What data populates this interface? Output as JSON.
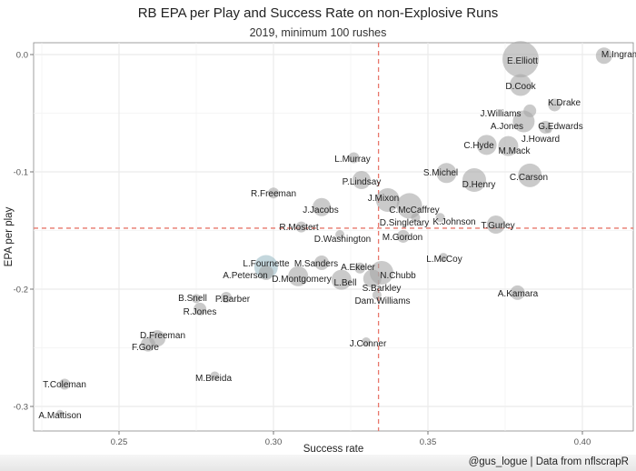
{
  "chart_data": {
    "type": "scatter",
    "title": "RB EPA per Play and Success Rate on non-Explosive Runs",
    "subtitle": "2019, minimum 100 rushes",
    "xlabel": "Success rate",
    "ylabel": "EPA per play",
    "caption": "@gus_logue | Data from nflscrapR",
    "xlim": [
      0.222,
      0.416
    ],
    "ylim": [
      -0.322,
      0.01
    ],
    "x_ticks": [
      0.25,
      0.3,
      0.35,
      0.4
    ],
    "x_tick_labels": [
      "0.25",
      "0.30",
      "0.35",
      "0.40"
    ],
    "y_ticks": [
      0.0,
      -0.1,
      -0.2,
      -0.3
    ],
    "y_tick_labels": [
      "0.0",
      "-0.1",
      "-0.2",
      "-0.3"
    ],
    "grid": true,
    "reference_lines": {
      "x": 0.334,
      "y": -0.148,
      "color": "#e8776b",
      "style": "dashed"
    },
    "point_color": "#a6a6a6",
    "highlight_color": "#9dbcc6",
    "points": [
      {
        "name": "M.Ingram",
        "x": 0.407,
        "y": -0.001,
        "size": 9
      },
      {
        "name": "E.Elliott",
        "x": 0.38,
        "y": -0.004,
        "size": 20
      },
      {
        "name": "D.Cook",
        "x": 0.38,
        "y": -0.026,
        "size": 12
      },
      {
        "name": "K.Drake",
        "x": 0.391,
        "y": -0.043,
        "size": 7
      },
      {
        "name": "J.Williams",
        "x": 0.383,
        "y": -0.048,
        "size": 7
      },
      {
        "name": "A.Jones",
        "x": 0.381,
        "y": -0.057,
        "size": 12
      },
      {
        "name": "G.Edwards",
        "x": 0.388,
        "y": -0.062,
        "size": 7
      },
      {
        "name": "J.Howard",
        "x": 0.389,
        "y": -0.064,
        "size": 4
      },
      {
        "name": "C.Hyde",
        "x": 0.369,
        "y": -0.077,
        "size": 11
      },
      {
        "name": "M.Mack",
        "x": 0.376,
        "y": -0.078,
        "size": 11
      },
      {
        "name": "L.Murray",
        "x": 0.326,
        "y": -0.088,
        "size": 6
      },
      {
        "name": "S.Michel",
        "x": 0.356,
        "y": -0.101,
        "size": 11
      },
      {
        "name": "D.Henry",
        "x": 0.365,
        "y": -0.107,
        "size": 13
      },
      {
        "name": "C.Carson",
        "x": 0.383,
        "y": -0.103,
        "size": 13
      },
      {
        "name": "P.Lindsay",
        "x": 0.3285,
        "y": -0.107,
        "size": 10
      },
      {
        "name": "J.Mixon",
        "x": 0.337,
        "y": -0.124,
        "size": 13
      },
      {
        "name": "C.McCaffrey",
        "x": 0.344,
        "y": -0.129,
        "size": 14
      },
      {
        "name": "D.Singletary",
        "x": 0.346,
        "y": -0.139,
        "size": 5
      },
      {
        "name": "K.Johnson",
        "x": 0.354,
        "y": -0.139,
        "size": 5
      },
      {
        "name": "T.Gurley",
        "x": 0.372,
        "y": -0.145,
        "size": 10
      },
      {
        "name": "M.Gordon",
        "x": 0.342,
        "y": -0.155,
        "size": 7
      },
      {
        "name": "R.Freeman",
        "x": 0.3,
        "y": -0.118,
        "size": 6
      },
      {
        "name": "J.Jacobs",
        "x": 0.3156,
        "y": -0.13,
        "size": 10
      },
      {
        "name": "R.Mostert",
        "x": 0.309,
        "y": -0.147,
        "size": 6
      },
      {
        "name": "D.Washington",
        "x": 0.3215,
        "y": -0.1535,
        "size": 5
      },
      {
        "name": "L.Fournette",
        "x": 0.2976,
        "y": -0.181,
        "size": 13,
        "highlight": true
      },
      {
        "name": "A.Peterson",
        "x": 0.2976,
        "y": -0.186,
        "size": 8
      },
      {
        "name": "M.Sanders",
        "x": 0.3156,
        "y": -0.1775,
        "size": 8
      },
      {
        "name": "D.Montgomery",
        "x": 0.308,
        "y": -0.189,
        "size": 11
      },
      {
        "name": "A.Ekeler",
        "x": 0.328,
        "y": -0.182,
        "size": 6
      },
      {
        "name": "L.Bell",
        "x": 0.322,
        "y": -0.192,
        "size": 11
      },
      {
        "name": "N.Chubb",
        "x": 0.335,
        "y": -0.186,
        "size": 13
      },
      {
        "name": "S.Barkley",
        "x": 0.332,
        "y": -0.191,
        "size": 10
      },
      {
        "name": "Dam.Williams",
        "x": 0.3335,
        "y": -0.205,
        "size": 5
      },
      {
        "name": "L.McCoy",
        "x": 0.355,
        "y": -0.173,
        "size": 5
      },
      {
        "name": "A.Kamara",
        "x": 0.379,
        "y": -0.203,
        "size": 8
      },
      {
        "name": "B.Snell",
        "x": 0.275,
        "y": -0.208,
        "size": 5
      },
      {
        "name": "P.Barber",
        "x": 0.2847,
        "y": -0.207,
        "size": 6
      },
      {
        "name": "R.Jones",
        "x": 0.2762,
        "y": -0.217,
        "size": 7
      },
      {
        "name": "D.Freeman",
        "x": 0.2624,
        "y": -0.242,
        "size": 9
      },
      {
        "name": "F.Gore",
        "x": 0.2594,
        "y": -0.247,
        "size": 8
      },
      {
        "name": "M.Breida",
        "x": 0.281,
        "y": -0.274,
        "size": 5
      },
      {
        "name": "J.Conner",
        "x": 0.33,
        "y": -0.245,
        "size": 5
      },
      {
        "name": "T.Coleman",
        "x": 0.2324,
        "y": -0.281,
        "size": 6
      },
      {
        "name": "A.Mattison",
        "x": 0.2309,
        "y": -0.306,
        "size": 4
      }
    ]
  }
}
